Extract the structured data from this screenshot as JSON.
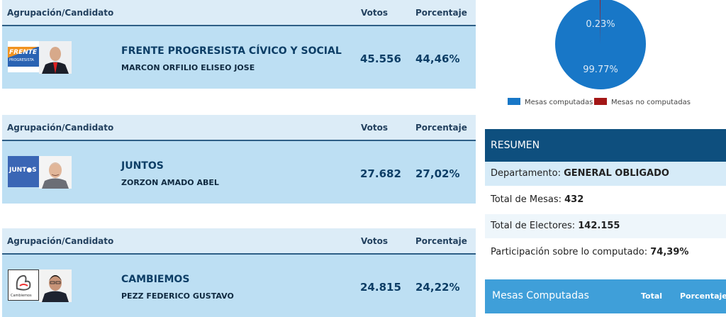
{
  "table_headers": {
    "group": "Agrupación/Candidato",
    "votes": "Votos",
    "percent": "Porcentaje"
  },
  "results": [
    {
      "party": "FRENTE PROGRESISTA CÍVICO Y SOCIAL",
      "candidate": "MARCON ORFILIO ELISEO JOSE",
      "votes": "45.556",
      "percent": "44,46%",
      "logo_text": "FRENTE",
      "logo_subtext": "PROGRESISTA"
    },
    {
      "party": "JUNTOS",
      "candidate": "ZORZON AMADO ABEL",
      "votes": "27.682",
      "percent": "27,02%",
      "logo_text": "JUNT●S"
    },
    {
      "party": "CAMBIEMOS",
      "candidate": "PEZZ FEDERICO GUSTAVO",
      "votes": "24.815",
      "percent": "24,22%",
      "logo_text": "Cambiemos"
    }
  ],
  "pie": {
    "slices": [
      {
        "label": "Mesas computadas",
        "value": 99.77,
        "text": "99.77%",
        "color": "#1877c7"
      },
      {
        "label": "Mesas no computadas",
        "value": 0.23,
        "text": "0.23%",
        "color": "#a31717"
      }
    ]
  },
  "summary": {
    "title": "RESUMEN",
    "department_label": "Departamento:",
    "department_value": "GENERAL OBLIGADO",
    "mesas_label": "Total de Mesas:",
    "mesas_value": "432",
    "electores_label": "Total de Electores:",
    "electores_value": "142.155",
    "participacion_label": "Participación sobre lo computado:",
    "participacion_value": "74,39%"
  },
  "mesas_computadas": {
    "title": "Mesas Computadas",
    "total_label": "Total",
    "percent_label": "Porcentaje"
  }
}
